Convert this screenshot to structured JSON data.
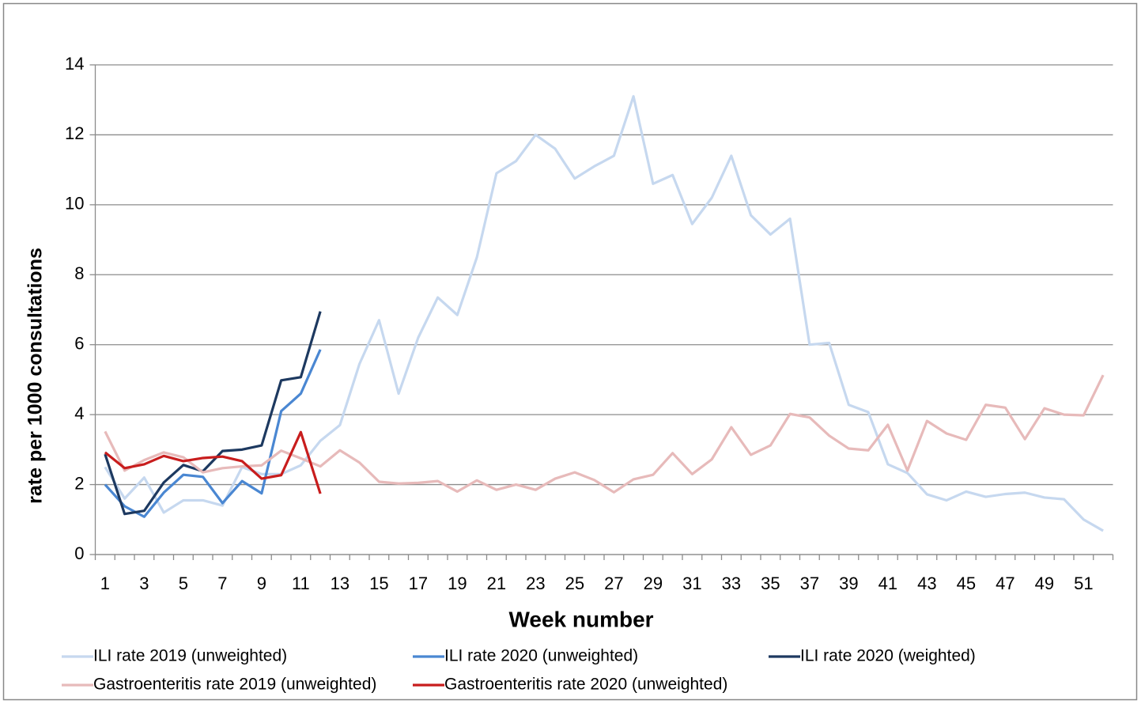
{
  "chart_data": {
    "type": "line",
    "xlabel": "Week number",
    "ylabel": "rate per 1000 consultations",
    "categories": [
      "1",
      null,
      "3",
      null,
      "5",
      null,
      "7",
      null,
      "9",
      null,
      "11",
      null,
      "13",
      null,
      "15",
      null,
      "17",
      null,
      "19",
      null,
      "21",
      null,
      "23",
      null,
      "25",
      null,
      "27",
      null,
      "29",
      null,
      "31",
      null,
      "33",
      null,
      "35",
      null,
      "37",
      null,
      "39",
      null,
      "41",
      null,
      "43",
      null,
      "45",
      null,
      "47",
      null,
      "49",
      null,
      "51",
      null
    ],
    "ylim": [
      0,
      14
    ],
    "yticks": [
      0,
      2,
      4,
      6,
      8,
      10,
      12,
      14
    ],
    "grid": true,
    "legend": "bottom",
    "series": [
      {
        "name": "ILI rate 2019 (unweighted)",
        "color": "#c6d8ef",
        "values": [
          2.5,
          1.6,
          2.2,
          1.2,
          1.55,
          1.55,
          1.4,
          2.5,
          2.3,
          2.3,
          2.55,
          3.25,
          3.7,
          5.45,
          6.7,
          4.6,
          6.2,
          7.35,
          6.85,
          8.5,
          10.9,
          11.25,
          12.0,
          11.6,
          10.75,
          11.1,
          11.4,
          13.1,
          10.6,
          10.85,
          9.45,
          10.2,
          11.4,
          9.7,
          9.15,
          9.6,
          6.0,
          6.05,
          4.28,
          4.07,
          2.58,
          2.33,
          1.72,
          1.55,
          1.8,
          1.65,
          1.73,
          1.77,
          1.63,
          1.58,
          1.0,
          0.68
        ]
      },
      {
        "name": "ILI rate 2020 (unweighted)",
        "color": "#4a87d2",
        "values": [
          2.0,
          1.38,
          1.08,
          1.77,
          2.28,
          2.22,
          1.47,
          2.1,
          1.75,
          4.1,
          4.6,
          5.86,
          null,
          null,
          null,
          null,
          null,
          null,
          null,
          null,
          null,
          null,
          null,
          null,
          null,
          null,
          null,
          null,
          null,
          null,
          null,
          null,
          null,
          null,
          null,
          null,
          null,
          null,
          null,
          null,
          null,
          null,
          null,
          null,
          null,
          null,
          null,
          null,
          null,
          null,
          null,
          null
        ]
      },
      {
        "name": "ILI rate 2020 (weighted)",
        "color": "#1d3960",
        "values": [
          2.87,
          1.16,
          1.25,
          2.06,
          2.56,
          2.38,
          2.96,
          3.0,
          3.12,
          4.98,
          5.07,
          6.95,
          null,
          null,
          null,
          null,
          null,
          null,
          null,
          null,
          null,
          null,
          null,
          null,
          null,
          null,
          null,
          null,
          null,
          null,
          null,
          null,
          null,
          null,
          null,
          null,
          null,
          null,
          null,
          null,
          null,
          null,
          null,
          null,
          null,
          null,
          null,
          null,
          null,
          null,
          null,
          null
        ]
      },
      {
        "name": "Gastroenteritis rate 2019 (unweighted)",
        "color": "#e7baba",
        "values": [
          3.52,
          2.4,
          2.7,
          2.92,
          2.78,
          2.35,
          2.47,
          2.52,
          2.55,
          2.97,
          2.75,
          2.52,
          2.98,
          2.63,
          2.08,
          2.03,
          2.05,
          2.1,
          1.8,
          2.12,
          1.85,
          2.0,
          1.85,
          2.17,
          2.35,
          2.13,
          1.78,
          2.15,
          2.28,
          2.9,
          2.3,
          2.72,
          3.64,
          2.85,
          3.12,
          4.02,
          3.92,
          3.4,
          3.03,
          2.98,
          3.71,
          2.4,
          3.82,
          3.46,
          3.28,
          4.28,
          4.2,
          3.3,
          4.18,
          4.0,
          3.98,
          5.13
        ]
      },
      {
        "name": "Gastroenteritis rate 2020 (unweighted)",
        "color": "#c81d1d",
        "values": [
          2.92,
          2.47,
          2.58,
          2.82,
          2.67,
          2.76,
          2.8,
          2.67,
          2.17,
          2.27,
          3.5,
          1.74,
          null,
          null,
          null,
          null,
          null,
          null,
          null,
          null,
          null,
          null,
          null,
          null,
          null,
          null,
          null,
          null,
          null,
          null,
          null,
          null,
          null,
          null,
          null,
          null,
          null,
          null,
          null,
          null,
          null,
          null,
          null,
          null,
          null,
          null,
          null,
          null,
          null,
          null,
          null,
          null
        ]
      }
    ]
  }
}
